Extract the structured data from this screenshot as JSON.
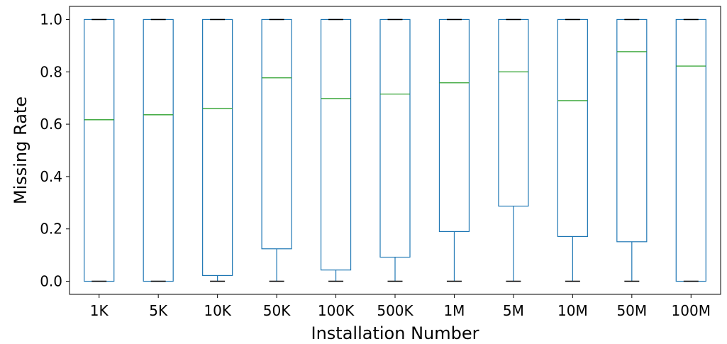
{
  "chart_data": {
    "type": "box",
    "xlabel": "Installation Number",
    "ylabel": "Missing Rate",
    "ylim": [
      -0.05,
      1.05
    ],
    "yticks": [
      0.0,
      0.2,
      0.4,
      0.6,
      0.8,
      1.0
    ],
    "ytick_labels": [
      "0.0",
      "0.2",
      "0.4",
      "0.6",
      "0.8",
      "1.0"
    ],
    "categories": [
      "1K",
      "5K",
      "10K",
      "50K",
      "100K",
      "500K",
      "1M",
      "5M",
      "10M",
      "50M",
      "100M"
    ],
    "boxes": [
      {
        "category": "1K",
        "whisker_low": 0.0,
        "q1": 0.0,
        "median": 0.617,
        "q3": 1.0,
        "whisker_high": 1.0
      },
      {
        "category": "5K",
        "whisker_low": 0.0,
        "q1": 0.0,
        "median": 0.636,
        "q3": 1.0,
        "whisker_high": 1.0
      },
      {
        "category": "10K",
        "whisker_low": 0.0,
        "q1": 0.022,
        "median": 0.66,
        "q3": 1.0,
        "whisker_high": 1.0
      },
      {
        "category": "50K",
        "whisker_low": 0.0,
        "q1": 0.124,
        "median": 0.777,
        "q3": 1.0,
        "whisker_high": 1.0
      },
      {
        "category": "100K",
        "whisker_low": 0.0,
        "q1": 0.043,
        "median": 0.698,
        "q3": 1.0,
        "whisker_high": 1.0
      },
      {
        "category": "500K",
        "whisker_low": 0.0,
        "q1": 0.092,
        "median": 0.715,
        "q3": 1.0,
        "whisker_high": 1.0
      },
      {
        "category": "1M",
        "whisker_low": 0.0,
        "q1": 0.19,
        "median": 0.758,
        "q3": 1.0,
        "whisker_high": 1.0
      },
      {
        "category": "5M",
        "whisker_low": 0.0,
        "q1": 0.287,
        "median": 0.8,
        "q3": 1.0,
        "whisker_high": 1.0
      },
      {
        "category": "10M",
        "whisker_low": 0.0,
        "q1": 0.171,
        "median": 0.69,
        "q3": 1.0,
        "whisker_high": 1.0
      },
      {
        "category": "50M",
        "whisker_low": 0.0,
        "q1": 0.151,
        "median": 0.877,
        "q3": 1.0,
        "whisker_high": 1.0
      },
      {
        "category": "100M",
        "whisker_low": 0.0,
        "q1": 0.0,
        "median": 0.822,
        "q3": 1.0,
        "whisker_high": 1.0
      }
    ],
    "colors": {
      "box": "#1f77b4",
      "median": "#2ca02c",
      "whisker_cap": "#000000"
    },
    "grid": false,
    "legend": "none"
  }
}
